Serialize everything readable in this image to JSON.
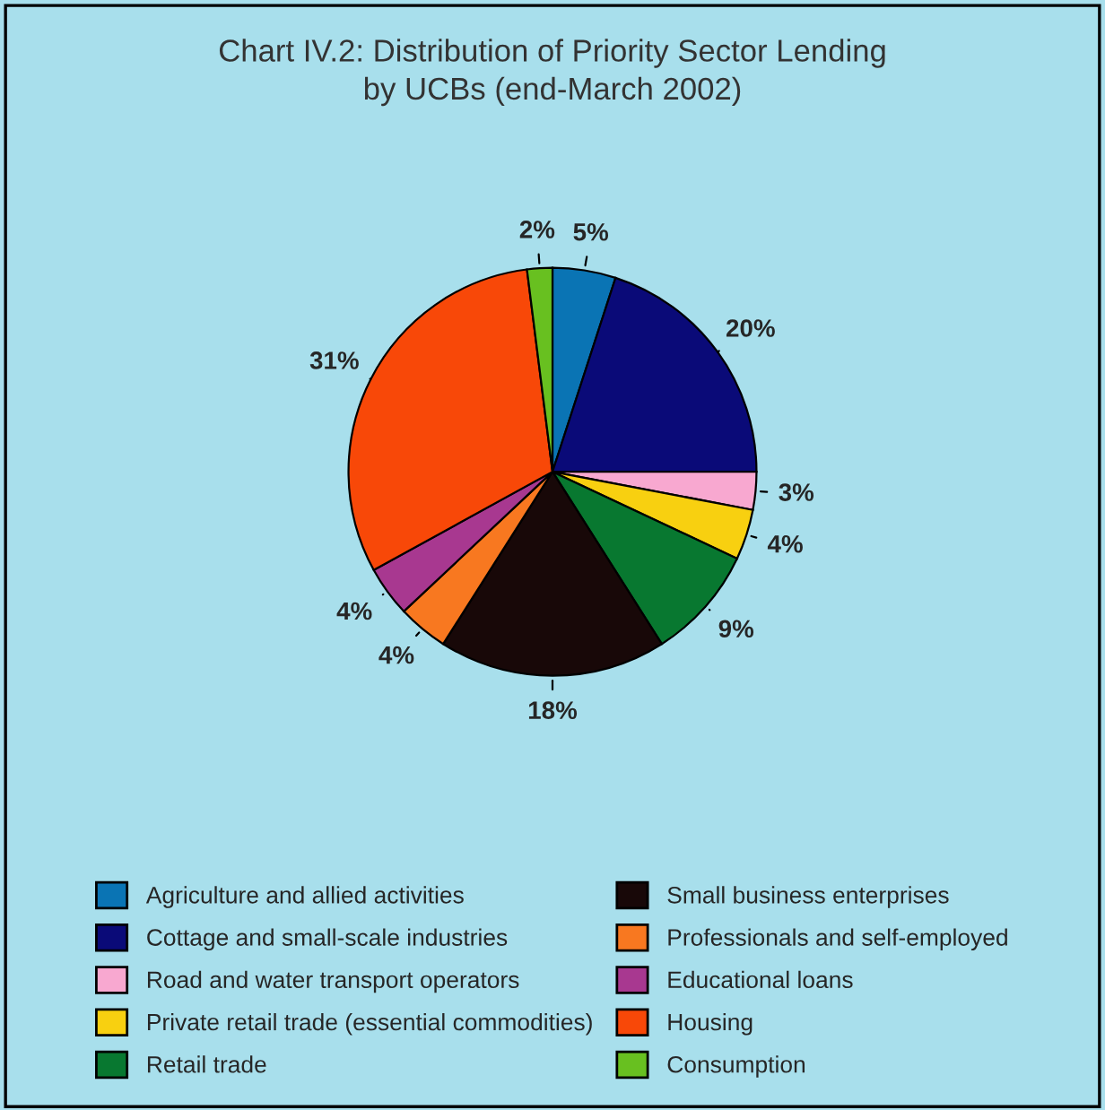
{
  "chart_data": {
    "type": "pie",
    "title": "Chart IV.2: Distribution of Priority Sector Lending\nby UCBs (end-March 2002)",
    "categories": [
      "Agriculture and allied activities",
      "Cottage and small-scale industries",
      "Road and water transport operators",
      "Private retail trade (essential commodities)",
      "Retail trade",
      "Small business enterprises",
      "Professionals and self-employed",
      "Educational loans",
      "Housing",
      "Consumption"
    ],
    "values": [
      5,
      20,
      3,
      4,
      9,
      18,
      4,
      4,
      31,
      2
    ],
    "value_labels": [
      "5%",
      "20%",
      "3%",
      "4%",
      "9%",
      "18%",
      "4%",
      "4%",
      "31%",
      "2%"
    ],
    "colors": [
      "#0a74b4",
      "#0a0a78",
      "#f8a8d0",
      "#f8d010",
      "#087830",
      "#180808",
      "#f87820",
      "#a83890",
      "#f84808",
      "#68c020"
    ],
    "legend": "bottom"
  }
}
